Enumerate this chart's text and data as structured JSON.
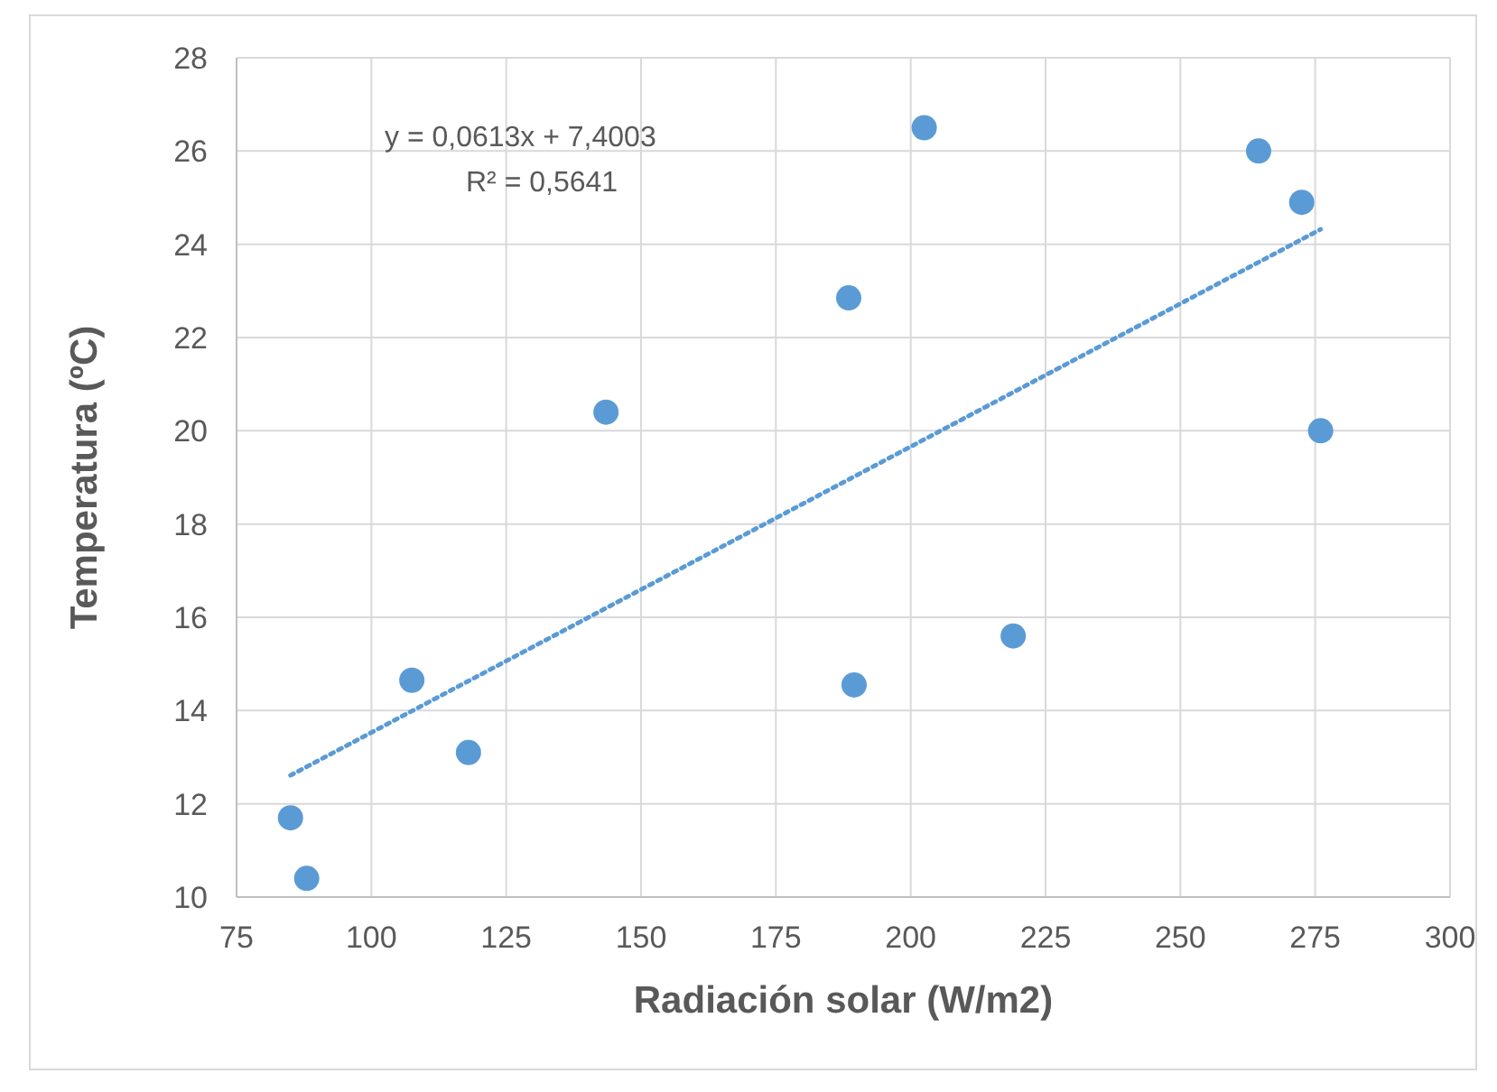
{
  "chart_data": {
    "type": "scatter",
    "xlabel": "Radiación solar (W/m2)",
    "ylabel": "Temperatura (ºC)",
    "xlim": [
      75,
      300
    ],
    "xticks": [
      75,
      100,
      125,
      150,
      175,
      200,
      225,
      250,
      275,
      300
    ],
    "ylim": [
      10,
      28
    ],
    "yticks": [
      10,
      12,
      14,
      16,
      18,
      20,
      22,
      24,
      26,
      28
    ],
    "grid": true,
    "annotations": [
      "y = 0,0613x + 7,4003",
      "R² = 0,5641"
    ],
    "series": [
      {
        "type": "scatter",
        "color": "#5b9bd5",
        "marker": "circle",
        "x": [
          85,
          88,
          107.5,
          118,
          143.5,
          188.5,
          189.5,
          202.5,
          219,
          264.5,
          272.5,
          276
        ],
        "values": [
          11.7,
          10.4,
          14.65,
          13.1,
          20.4,
          22.85,
          14.55,
          26.5,
          15.6,
          26.0,
          24.9,
          20.0
        ]
      },
      {
        "type": "line",
        "color": "#5b9bd5",
        "line_style": "dotted",
        "x": [
          85,
          276
        ],
        "values": [
          12.61,
          24.32
        ]
      }
    ]
  }
}
